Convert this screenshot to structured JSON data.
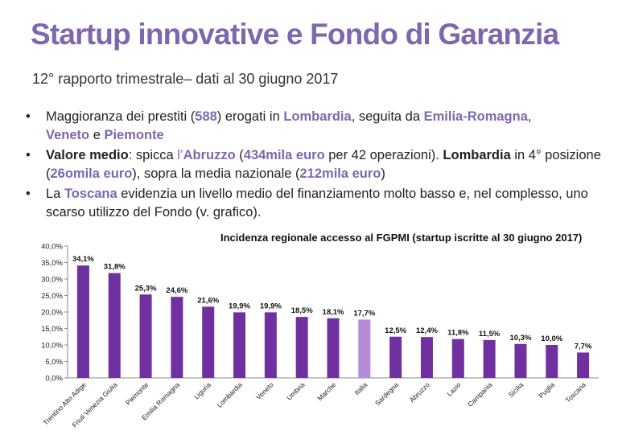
{
  "title": "Startup innovative e Fondo di Garanzia",
  "subtitle": "12° rapporto trimestrale– dati al 30 giugno 2017",
  "bullets": {
    "b1": {
      "t1": "Maggioranza dei prestiti (",
      "h1": "588",
      "t2": ") erogati in ",
      "h2": "Lombardia",
      "t3": ", seguita da ",
      "h3": "Emilia-Romagna",
      "t4": ",",
      "h4": "Veneto",
      "t5": " e ",
      "h5": "Piemonte"
    },
    "b2": {
      "b1": "Valore medio",
      "t1": ": spicca ",
      "h0": "l’",
      "h1": "Abruzzo",
      "t2": " (",
      "h2": "434mila euro",
      "t3": " per 42 operazioni). ",
      "b2": "Lombardia",
      "t4": " in 4° posizione (",
      "h3": "26omila euro",
      "t5": "), sopra la media nazionale (",
      "h4": "212mila euro",
      "t6": ")"
    },
    "b3": {
      "t1": "La ",
      "h1": "Toscana",
      "t2": " evidenzia un livello medio del finanziamento molto basso e, nel complesso, uno scarso utilizzo del Fondo (v. grafico)."
    }
  },
  "chart_data": {
    "type": "bar",
    "title": "Incidenza regionale accesso al FGPMI (startup iscritte al 30 giugno 2017)",
    "categories": [
      "Trentino Alto Adige",
      "Friuli Venezia Giulia",
      "Piemonte",
      "Emilia Romagna",
      "Liguria",
      "Lombardia",
      "Veneto",
      "Umbria",
      "Marche",
      "Italia",
      "Sardegna",
      "Abruzzo",
      "Lazio",
      "Campania",
      "Sicilia",
      "Puglia",
      "Toscana"
    ],
    "values": [
      34.1,
      31.8,
      25.3,
      24.6,
      21.6,
      19.9,
      19.9,
      18.5,
      18.1,
      17.7,
      12.5,
      12.4,
      11.8,
      11.5,
      10.3,
      10.0,
      7.7
    ],
    "data_labels": [
      "34,1%",
      "31,8%",
      "25,3%",
      "24,6%",
      "21,6%",
      "19,9%",
      "19,9%",
      "18,5%",
      "18,1%",
      "17,7%",
      "12,5%",
      "12,4%",
      "11,8%",
      "11,5%",
      "10,3%",
      "10,0%",
      "7,7%"
    ],
    "yticks": [
      0,
      5,
      10,
      15,
      20,
      25,
      30,
      35,
      40
    ],
    "ytick_labels": [
      "0,0%",
      "5,0%",
      "10,0%",
      "15,0%",
      "20,0%",
      "25,0%",
      "30,0%",
      "35,0%",
      "40,0%"
    ],
    "ylim": [
      0,
      40
    ],
    "xlabel": "",
    "ylabel": "",
    "grid": false,
    "legend": "none",
    "colors": {
      "bar": "#7030a0",
      "highlight": "#b38bd8"
    },
    "highlight_category": "Italia"
  }
}
